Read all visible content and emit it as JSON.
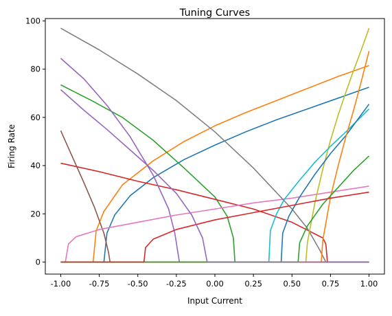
{
  "chart_data": {
    "type": "line",
    "title": "Tuning Curves",
    "xlabel": "Input Current",
    "ylabel": "Firing Rate",
    "xlim": [
      -1.1,
      1.1
    ],
    "ylim": [
      -5,
      101
    ],
    "xticks": [
      "-1.00",
      "-0.75",
      "-0.50",
      "-0.25",
      "0.00",
      "0.25",
      "0.50",
      "0.75",
      "1.00"
    ],
    "yticks": [
      "0",
      "20",
      "40",
      "60",
      "80",
      "100"
    ],
    "grid": false,
    "legend": "none",
    "series": [
      {
        "color": "#1f77b4",
        "direction": "increasing",
        "threshold": -0.72,
        "x": [
          -0.72,
          -0.7,
          -0.65,
          -0.55,
          -0.4,
          -0.2,
          0.0,
          0.2,
          0.4,
          0.6,
          0.8,
          1.0
        ],
        "y": [
          0,
          12.0,
          19.5,
          27.5,
          35.0,
          42.5,
          48.5,
          54.0,
          59.0,
          63.5,
          68.0,
          72.5
        ]
      },
      {
        "color": "#ff7f0e",
        "direction": "increasing",
        "threshold": -0.79,
        "x": [
          -0.79,
          -0.77,
          -0.72,
          -0.6,
          -0.4,
          -0.2,
          0.0,
          0.2,
          0.4,
          0.6,
          0.8,
          1.0
        ],
        "y": [
          0,
          13.0,
          21.0,
          32.0,
          42.0,
          50.0,
          56.5,
          62.0,
          67.0,
          72.0,
          77.0,
          81.5
        ]
      },
      {
        "color": "#2ca02c",
        "direction": "decreasing",
        "threshold": 0.13,
        "x": [
          -1.0,
          -0.8,
          -0.6,
          -0.4,
          -0.2,
          0.0,
          0.08,
          0.12,
          0.13
        ],
        "y": [
          73.5,
          67.0,
          60.0,
          50.5,
          39.0,
          27.0,
          19.0,
          10.0,
          0
        ]
      },
      {
        "color": "#d62728",
        "direction": "decreasing",
        "threshold": 0.73,
        "x": [
          -1.0,
          -0.75,
          -0.5,
          -0.25,
          0.0,
          0.25,
          0.5,
          0.7,
          0.72,
          0.73
        ],
        "y": [
          41.0,
          37.5,
          33.5,
          30.0,
          26.0,
          22.0,
          16.5,
          10.0,
          7.5,
          0
        ]
      },
      {
        "color": "#9467bd",
        "direction": "decreasing",
        "threshold": -0.23,
        "x": [
          -1.0,
          -0.85,
          -0.7,
          -0.55,
          -0.4,
          -0.3,
          -0.26,
          -0.23
        ],
        "y": [
          84.5,
          76.0,
          65.0,
          52.0,
          36.0,
          22.0,
          12.0,
          0
        ]
      },
      {
        "color": "#8c564b",
        "direction": "decreasing",
        "threshold": -0.68,
        "x": [
          -1.0,
          -0.92,
          -0.85,
          -0.78,
          -0.72,
          -0.69,
          -0.68
        ],
        "y": [
          54.5,
          43.0,
          33.0,
          22.5,
          12.0,
          4.0,
          0
        ]
      },
      {
        "color": "#e377c2",
        "direction": "increasing",
        "threshold": -0.97,
        "x": [
          -0.97,
          -0.95,
          -0.9,
          -0.75,
          -0.5,
          -0.25,
          0.0,
          0.25,
          0.5,
          0.75,
          1.0
        ],
        "y": [
          0,
          7.5,
          10.5,
          13.5,
          16.5,
          19.5,
          22.0,
          24.5,
          26.5,
          29.0,
          31.5
        ]
      },
      {
        "color": "#7f7f7f",
        "direction": "decreasing",
        "threshold": 0.72,
        "x": [
          -1.0,
          -0.75,
          -0.5,
          -0.25,
          0.0,
          0.25,
          0.5,
          0.6,
          0.68,
          0.72
        ],
        "y": [
          97.0,
          88.0,
          78.0,
          67.0,
          54.0,
          39.0,
          22.0,
          14.0,
          5.0,
          0
        ]
      },
      {
        "color": "#bcbd22",
        "direction": "increasing",
        "threshold": 0.59,
        "x": [
          0.59,
          0.6,
          0.65,
          0.7,
          0.75,
          0.8,
          0.85,
          0.9,
          0.95,
          1.0
        ],
        "y": [
          0,
          8.0,
          25.0,
          38.5,
          50.5,
          61.0,
          70.5,
          79.5,
          88.0,
          97.0
        ]
      },
      {
        "color": "#17becf",
        "direction": "increasing",
        "threshold": 0.35,
        "x": [
          0.35,
          0.36,
          0.4,
          0.45,
          0.55,
          0.65,
          0.75,
          0.85,
          1.0
        ],
        "y": [
          0,
          13.0,
          20.0,
          26.0,
          34.0,
          41.5,
          48.0,
          54.0,
          63.5
        ]
      },
      {
        "color": "#1f77b4",
        "direction": "increasing",
        "threshold": 0.43,
        "x": [
          0.43,
          0.44,
          0.48,
          0.55,
          0.65,
          0.75,
          0.85,
          1.0
        ],
        "y": [
          0,
          12.0,
          19.0,
          27.0,
          36.5,
          45.0,
          52.5,
          65.5
        ]
      },
      {
        "color": "#ff7f0e",
        "direction": "increasing",
        "threshold": 0.69,
        "x": [
          0.69,
          0.7,
          0.75,
          0.8,
          0.85,
          0.9,
          0.95,
          1.0
        ],
        "y": [
          0,
          9.0,
          27.0,
          40.0,
          52.0,
          63.0,
          75.0,
          87.5
        ]
      },
      {
        "color": "#2ca02c",
        "direction": "increasing",
        "threshold": 0.54,
        "x": [
          0.54,
          0.55,
          0.6,
          0.7,
          0.8,
          0.9,
          1.0
        ],
        "y": [
          0,
          8.0,
          15.0,
          24.0,
          31.0,
          38.0,
          44.0
        ]
      },
      {
        "color": "#d62728",
        "direction": "increasing",
        "threshold": -0.46,
        "x": [
          -0.46,
          -0.45,
          -0.4,
          -0.25,
          0.0,
          0.25,
          0.5,
          0.75,
          1.0
        ],
        "y": [
          0,
          6.0,
          9.5,
          13.5,
          17.5,
          20.5,
          23.5,
          26.5,
          29.0
        ]
      },
      {
        "color": "#9467bd",
        "direction": "decreasing",
        "threshold": -0.05,
        "x": [
          -1.0,
          -0.85,
          -0.7,
          -0.55,
          -0.4,
          -0.25,
          -0.15,
          -0.08,
          -0.05
        ],
        "y": [
          71.5,
          63.0,
          55.0,
          46.5,
          38.0,
          28.5,
          19.5,
          10.0,
          0
        ]
      }
    ]
  }
}
